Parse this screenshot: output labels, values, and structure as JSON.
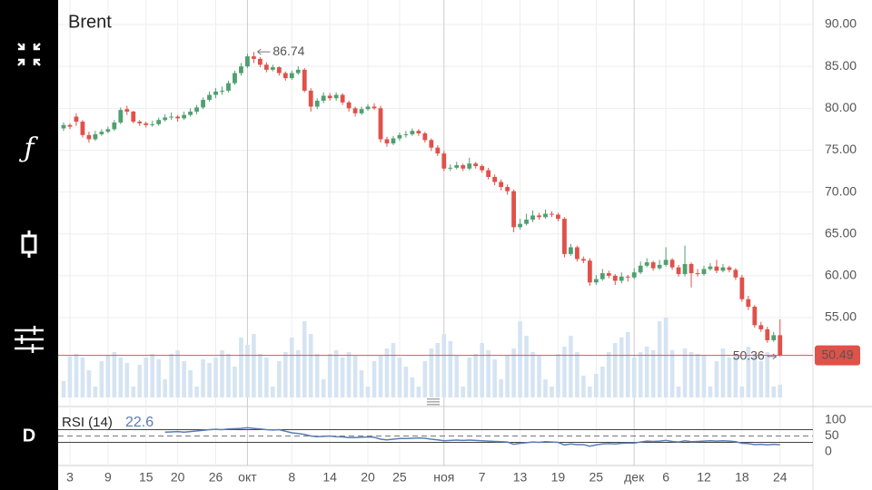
{
  "toolbar": {
    "function_icon": "ƒ",
    "interval": "D"
  },
  "chart_data": {
    "type": "candlestick",
    "title": "Brent",
    "categories": [
      null,
      "3",
      null,
      null,
      null,
      null,
      null,
      "9",
      null,
      null,
      null,
      null,
      null,
      "15",
      null,
      null,
      null,
      null,
      "20",
      null,
      null,
      null,
      null,
      null,
      "26",
      null,
      null,
      null,
      null,
      "окт",
      null,
      null,
      null,
      null,
      null,
      null,
      "8",
      null,
      null,
      null,
      null,
      null,
      "14",
      null,
      null,
      null,
      null,
      null,
      "20",
      null,
      null,
      null,
      null,
      "25",
      null,
      null,
      null,
      null,
      null,
      null,
      "ноя",
      null,
      null,
      null,
      null,
      null,
      "7",
      null,
      null,
      null,
      null,
      null,
      "13",
      null,
      null,
      null,
      null,
      null,
      "19",
      null,
      null,
      null,
      null,
      null,
      "25",
      null,
      null,
      null,
      null,
      null,
      "дек",
      null,
      null,
      null,
      null,
      "6",
      null,
      null,
      null,
      null,
      null,
      "12",
      null,
      null,
      null,
      null,
      null,
      "18",
      null,
      null,
      null,
      null,
      null,
      "24"
    ],
    "ohlc": [
      [
        77.6,
        78.3,
        77.3,
        78.0
      ],
      [
        78.0,
        78.2,
        77.5,
        77.8
      ],
      [
        79.0,
        79.4,
        77.9,
        78.4
      ],
      [
        78.4,
        78.6,
        76.5,
        76.8
      ],
      [
        76.8,
        77.2,
        75.9,
        76.3
      ],
      [
        76.3,
        77.3,
        76.1,
        76.9
      ],
      [
        76.9,
        77.5,
        76.7,
        77.2
      ],
      [
        77.2,
        77.8,
        77.0,
        77.5
      ],
      [
        77.5,
        78.6,
        77.3,
        78.3
      ],
      [
        78.3,
        80.1,
        78.1,
        79.8
      ],
      [
        79.9,
        80.3,
        79.2,
        79.6
      ],
      [
        79.6,
        79.7,
        78.2,
        78.4
      ],
      [
        78.4,
        78.6,
        77.9,
        78.2
      ],
      [
        78.2,
        78.4,
        77.7,
        78.0
      ],
      [
        78.0,
        78.5,
        77.8,
        78.1
      ],
      [
        78.1,
        78.9,
        77.9,
        78.6
      ],
      [
        78.6,
        79.3,
        78.4,
        78.9
      ],
      [
        78.9,
        79.5,
        78.6,
        79.0
      ],
      [
        79.0,
        79.2,
        78.4,
        78.8
      ],
      [
        78.8,
        79.6,
        78.6,
        79.2
      ],
      [
        79.2,
        80.0,
        79.0,
        79.6
      ],
      [
        79.6,
        80.4,
        79.3,
        80.1
      ],
      [
        80.1,
        81.3,
        79.9,
        81.0
      ],
      [
        81.0,
        82.0,
        80.8,
        81.6
      ],
      [
        81.6,
        82.4,
        81.2,
        82.0
      ],
      [
        82.0,
        82.6,
        81.6,
        82.1
      ],
      [
        82.1,
        83.3,
        81.9,
        83.0
      ],
      [
        83.0,
        84.5,
        82.8,
        84.2
      ],
      [
        84.2,
        85.4,
        83.9,
        85.0
      ],
      [
        85.0,
        86.5,
        84.8,
        86.2
      ],
      [
        86.2,
        86.74,
        85.4,
        85.9
      ],
      [
        85.9,
        86.1,
        84.9,
        85.2
      ],
      [
        85.2,
        85.5,
        84.3,
        84.6
      ],
      [
        84.6,
        85.2,
        84.4,
        84.9
      ],
      [
        84.9,
        85.0,
        83.9,
        84.2
      ],
      [
        84.2,
        84.4,
        83.3,
        83.6
      ],
      [
        83.6,
        84.5,
        83.4,
        84.2
      ],
      [
        84.2,
        85.0,
        84.0,
        84.6
      ],
      [
        84.6,
        84.8,
        81.9,
        82.1
      ],
      [
        82.1,
        82.4,
        79.6,
        80.2
      ],
      [
        80.2,
        81.2,
        79.9,
        80.9
      ],
      [
        80.9,
        81.9,
        80.6,
        81.5
      ],
      [
        81.5,
        81.8,
        80.9,
        81.2
      ],
      [
        81.2,
        81.9,
        80.9,
        81.6
      ],
      [
        81.6,
        81.8,
        80.4,
        80.7
      ],
      [
        80.7,
        80.9,
        79.6,
        80.0
      ],
      [
        80.0,
        80.2,
        79.0,
        79.4
      ],
      [
        79.4,
        80.2,
        79.2,
        79.9
      ],
      [
        79.9,
        80.5,
        79.7,
        80.2
      ],
      [
        80.2,
        80.6,
        79.8,
        80.0
      ],
      [
        80.0,
        80.3,
        75.9,
        76.3
      ],
      [
        76.3,
        76.6,
        75.4,
        75.8
      ],
      [
        75.8,
        76.7,
        75.6,
        76.4
      ],
      [
        76.4,
        77.1,
        76.1,
        76.8
      ],
      [
        76.8,
        77.3,
        76.5,
        76.9
      ],
      [
        76.9,
        77.6,
        76.7,
        77.3
      ],
      [
        77.3,
        77.5,
        76.7,
        77.0
      ],
      [
        77.0,
        77.2,
        75.9,
        76.2
      ],
      [
        76.2,
        76.4,
        74.9,
        75.3
      ],
      [
        75.3,
        75.6,
        74.3,
        74.6
      ],
      [
        74.6,
        74.9,
        72.5,
        72.8
      ],
      [
        72.8,
        73.3,
        72.5,
        72.9
      ],
      [
        72.9,
        73.6,
        72.7,
        73.2
      ],
      [
        73.2,
        73.4,
        72.5,
        72.8
      ],
      [
        72.8,
        74.1,
        72.6,
        73.4
      ],
      [
        73.4,
        73.6,
        72.8,
        73.1
      ],
      [
        73.1,
        73.3,
        72.3,
        72.6
      ],
      [
        72.6,
        72.9,
        71.5,
        71.8
      ],
      [
        71.8,
        72.1,
        70.8,
        71.2
      ],
      [
        71.2,
        71.5,
        70.2,
        70.6
      ],
      [
        70.6,
        70.9,
        69.7,
        70.1
      ],
      [
        70.1,
        70.3,
        65.2,
        65.8
      ],
      [
        65.8,
        66.8,
        65.5,
        66.2
      ],
      [
        66.2,
        67.4,
        66.0,
        66.7
      ],
      [
        66.7,
        67.8,
        66.4,
        67.2
      ],
      [
        67.2,
        67.5,
        66.7,
        67.0
      ],
      [
        67.0,
        67.9,
        66.8,
        67.4
      ],
      [
        67.4,
        67.7,
        67.0,
        67.3
      ],
      [
        67.3,
        67.5,
        66.5,
        66.8
      ],
      [
        66.8,
        67.0,
        62.2,
        62.6
      ],
      [
        62.6,
        63.8,
        62.4,
        63.4
      ],
      [
        63.4,
        63.6,
        61.7,
        62.0
      ],
      [
        62.0,
        62.3,
        61.5,
        61.8
      ],
      [
        61.8,
        62.1,
        58.8,
        59.2
      ],
      [
        59.2,
        60.1,
        58.9,
        59.6
      ],
      [
        59.6,
        60.8,
        59.4,
        60.3
      ],
      [
        60.3,
        60.6,
        59.7,
        60.0
      ],
      [
        60.0,
        60.2,
        58.9,
        59.4
      ],
      [
        59.4,
        60.4,
        59.1,
        59.9
      ],
      [
        59.9,
        60.1,
        59.3,
        59.8
      ],
      [
        59.8,
        60.9,
        59.6,
        60.4
      ],
      [
        60.4,
        61.7,
        60.2,
        61.2
      ],
      [
        61.2,
        62.1,
        61.0,
        61.6
      ],
      [
        61.6,
        61.8,
        60.6,
        60.9
      ],
      [
        60.9,
        61.9,
        60.7,
        61.3
      ],
      [
        61.3,
        63.4,
        61.1,
        61.9
      ],
      [
        61.9,
        62.1,
        60.7,
        61.0
      ],
      [
        61.0,
        61.3,
        59.9,
        60.2
      ],
      [
        60.2,
        63.6,
        59.9,
        61.4
      ],
      [
        61.4,
        61.6,
        58.6,
        60.3
      ],
      [
        60.3,
        60.8,
        59.9,
        60.2
      ],
      [
        60.2,
        61.2,
        60.0,
        60.8
      ],
      [
        60.8,
        61.5,
        60.6,
        61.1
      ],
      [
        61.1,
        61.9,
        60.3,
        60.6
      ],
      [
        60.6,
        61.4,
        60.4,
        61.0
      ],
      [
        61.0,
        61.2,
        60.4,
        60.7
      ],
      [
        60.7,
        60.9,
        59.5,
        59.8
      ],
      [
        59.8,
        60.1,
        56.9,
        57.2
      ],
      [
        57.2,
        57.6,
        55.9,
        56.3
      ],
      [
        56.3,
        56.5,
        53.8,
        54.1
      ],
      [
        54.1,
        54.5,
        53.3,
        53.6
      ],
      [
        53.6,
        53.9,
        52.0,
        52.3
      ],
      [
        52.3,
        53.3,
        52.1,
        52.9
      ],
      [
        52.9,
        54.8,
        50.36,
        50.49
      ]
    ],
    "volume": [
      18,
      45,
      48,
      44,
      30,
      12,
      40,
      46,
      50,
      44,
      38,
      12,
      36,
      44,
      48,
      42,
      20,
      48,
      52,
      40,
      30,
      12,
      42,
      38,
      44,
      52,
      48,
      34,
      66,
      58,
      70,
      48,
      44,
      12,
      40,
      50,
      66,
      52,
      84,
      70,
      48,
      20,
      48,
      52,
      44,
      50,
      46,
      30,
      12,
      40,
      46,
      54,
      60,
      44,
      34,
      22,
      12,
      40,
      54,
      60,
      70,
      62,
      46,
      12,
      44,
      48,
      60,
      52,
      42,
      20,
      46,
      54,
      84,
      68,
      50,
      46,
      20,
      12,
      48,
      56,
      68,
      50,
      24,
      12,
      26,
      34,
      50,
      60,
      66,
      72,
      44,
      50,
      56,
      52,
      84,
      88,
      52,
      12,
      54,
      50,
      48,
      46,
      12,
      40,
      54,
      44,
      48,
      12,
      56,
      48,
      40,
      50,
      12,
      14
    ],
    "rsi_name": "RSI (14)",
    "rsi": [
      null,
      null,
      null,
      null,
      null,
      null,
      null,
      null,
      null,
      null,
      null,
      null,
      null,
      null,
      null,
      null,
      62,
      63,
      64,
      62,
      64,
      66,
      68,
      70,
      71,
      70,
      72,
      73,
      74,
      76,
      74,
      72,
      70,
      69,
      70,
      65,
      60,
      58,
      55,
      50,
      48,
      49,
      50,
      48,
      47,
      45,
      45,
      46,
      47,
      46,
      40,
      38,
      40,
      42,
      42,
      43,
      44,
      43,
      40,
      38,
      35,
      36,
      37,
      36,
      37,
      36,
      35,
      34,
      33,
      32,
      31,
      24,
      27,
      29,
      31,
      30,
      32,
      31,
      30,
      22,
      25,
      23,
      23,
      18,
      22,
      25,
      26,
      25,
      27,
      28,
      28,
      31,
      34,
      33,
      34,
      36,
      33,
      31,
      35,
      32,
      33,
      34,
      35,
      34,
      35,
      34,
      32,
      27,
      26,
      23,
      24,
      22,
      24,
      22.6
    ],
    "rsi_bands": [
      30,
      70
    ],
    "rsi_mid": 50,
    "rsi_ylim": [
      0,
      100
    ],
    "rsi_yticks": [
      100,
      50,
      0
    ],
    "ylim": [
      45.25,
      92.93
    ],
    "yticks": [
      {
        "value": 90,
        "label": "90.00"
      },
      {
        "value": 85,
        "label": "85.00"
      },
      {
        "value": 80,
        "label": "80.00"
      },
      {
        "value": 75,
        "label": "75.00"
      },
      {
        "value": 70,
        "label": "70.00"
      },
      {
        "value": 65,
        "label": "65.00"
      },
      {
        "value": 60,
        "label": "60.00"
      },
      {
        "value": 55,
        "label": "55.00"
      }
    ],
    "grid": true,
    "up_color": "#4f9f6f",
    "down_color": "#e0514a",
    "volume_color": "#d6e4f2",
    "rsi_color": "#5a7db5"
  }
}
